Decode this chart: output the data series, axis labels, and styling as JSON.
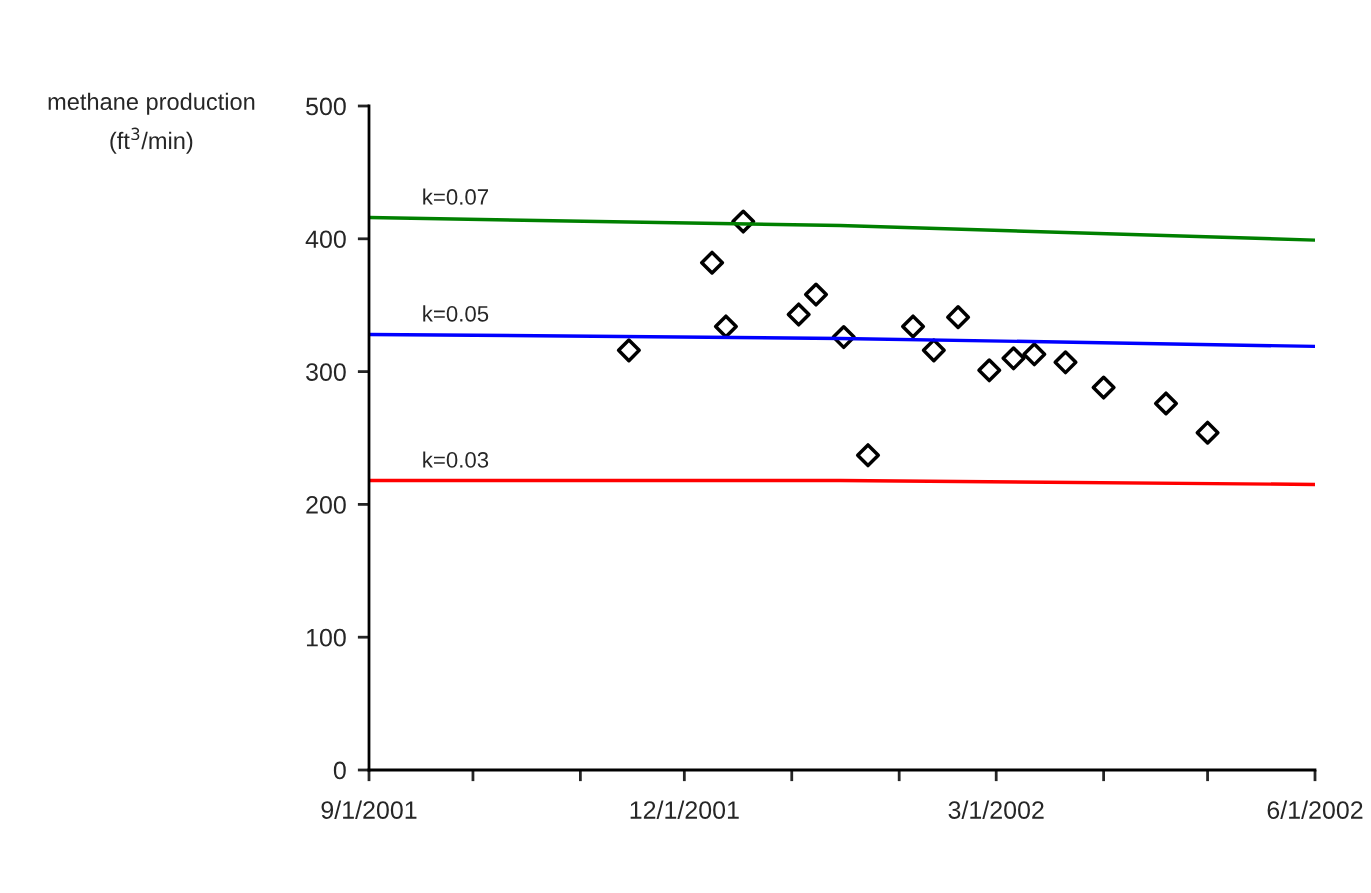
{
  "chart_data": {
    "type": "scatter",
    "ylabel": "methane production\n(ft$^{3}$/min)",
    "xlim": [
      "2001-09-01",
      "2002-06-01"
    ],
    "ylim": [
      0,
      500
    ],
    "xticks": [
      {
        "value": "2001-09-01",
        "label": "9/1/2001"
      },
      {
        "value": "2001-10-01",
        "label": null
      },
      {
        "value": "2001-11-01",
        "label": null
      },
      {
        "value": "2001-12-01",
        "label": "12/1/2001"
      },
      {
        "value": "2002-01-01",
        "label": null
      },
      {
        "value": "2002-02-01",
        "label": null
      },
      {
        "value": "2002-03-01",
        "label": "3/1/2002"
      },
      {
        "value": "2002-04-01",
        "label": null
      },
      {
        "value": "2002-05-01",
        "label": null
      },
      {
        "value": "2002-06-01",
        "label": "6/1/2002"
      }
    ],
    "yticks": [
      0,
      100,
      200,
      300,
      400,
      500
    ],
    "grid": false,
    "legend": false,
    "series": [
      {
        "type": "line",
        "name": "k=0.07",
        "color": "#008000",
        "x": [
          "2001-09-01",
          "2002-01-15",
          "2002-06-01"
        ],
        "values": [
          416,
          410,
          399
        ],
        "marker": "none",
        "line_style": "solid"
      },
      {
        "type": "line",
        "name": "k=0.05",
        "color": "#0000ff",
        "x": [
          "2001-09-01",
          "2002-01-15",
          "2002-06-01"
        ],
        "values": [
          328,
          325,
          319
        ],
        "marker": "none",
        "line_style": "solid"
      },
      {
        "type": "line",
        "name": "k=0.03",
        "color": "#ff0000",
        "x": [
          "2001-09-01",
          "2002-01-15",
          "2002-06-01"
        ],
        "values": [
          218,
          218,
          215
        ],
        "marker": "none",
        "line_style": "solid"
      },
      {
        "color": "#000000",
        "marker": "diamond",
        "x": [
          "2001-11-15",
          "2001-12-09",
          "2001-12-13",
          "2001-12-18",
          "2002-01-03",
          "2002-01-08",
          "2002-01-16",
          "2002-01-23",
          "2002-02-05",
          "2002-02-11",
          "2002-02-18",
          "2002-02-27",
          "2002-03-06",
          "2002-03-12",
          "2002-03-21",
          "2002-04-01",
          "2002-04-19",
          "2002-05-01"
        ],
        "values": [
          316,
          382,
          334,
          413,
          343,
          358,
          326,
          237,
          334,
          316,
          341,
          301,
          310,
          313,
          307,
          288,
          276,
          254
        ]
      }
    ]
  }
}
